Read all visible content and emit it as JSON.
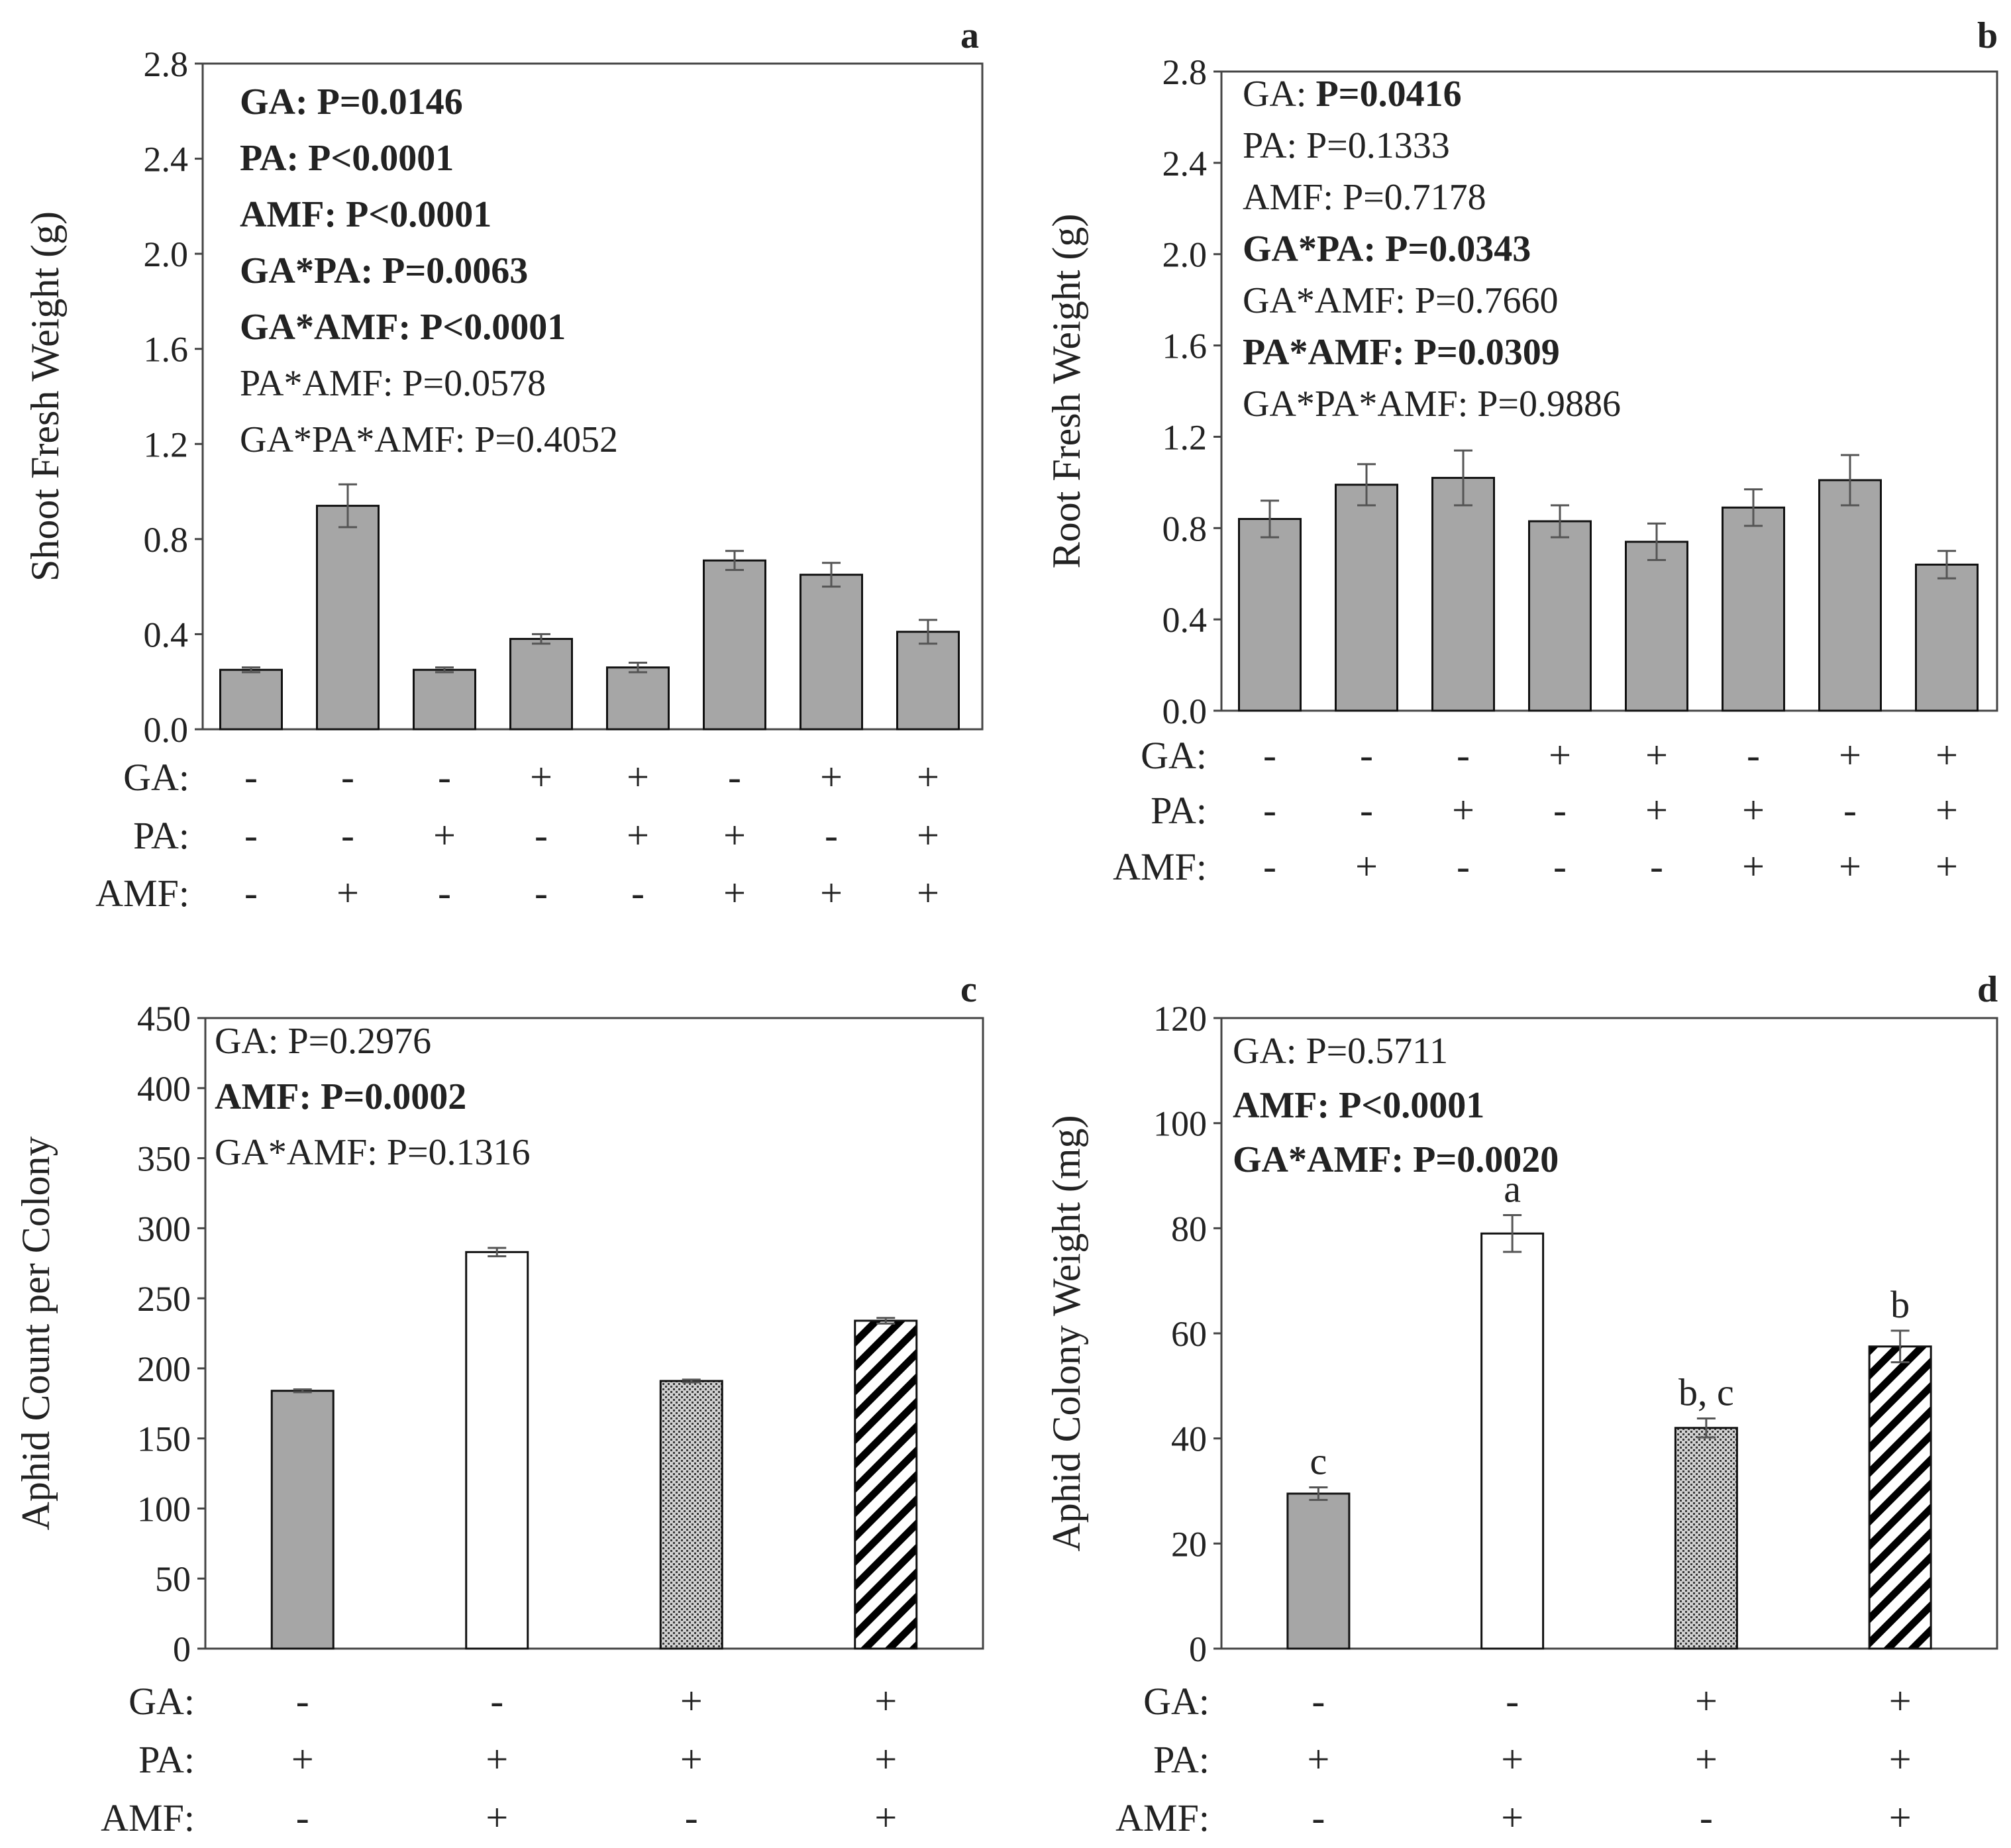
{
  "colors": {
    "gray_bar": "#a6a6a6",
    "white_bar": "#ffffff",
    "axis": "#444444",
    "text": "#222222"
  },
  "chart_data": [
    {
      "panel": "a",
      "type": "bar",
      "ylabel": "Shoot Fresh Weight (g)",
      "ylim": [
        0,
        2.8
      ],
      "yticks": [
        "0.0",
        "0.4",
        "0.8",
        "1.2",
        "1.6",
        "2.0",
        "2.4",
        "2.8"
      ],
      "values": [
        0.25,
        0.94,
        0.25,
        0.38,
        0.26,
        0.71,
        0.65,
        0.41
      ],
      "errors": [
        0.01,
        0.09,
        0.01,
        0.02,
        0.02,
        0.04,
        0.05,
        0.05
      ],
      "patterns": [
        "gray",
        "gray",
        "gray",
        "gray",
        "gray",
        "gray",
        "gray",
        "gray"
      ],
      "treatments": {
        "row_labels": [
          "GA:",
          "PA:",
          "AMF:"
        ],
        "GA": [
          "-",
          "-",
          "-",
          "+",
          "+",
          "-",
          "+",
          "+"
        ],
        "PA": [
          "-",
          "-",
          "+",
          "-",
          "+",
          "+",
          "-",
          "+"
        ],
        "AMF": [
          "-",
          "+",
          "-",
          "-",
          "-",
          "+",
          "+",
          "+"
        ]
      },
      "stats": [
        {
          "factor": "GA:",
          "value": "P=0.0146",
          "bold": true
        },
        {
          "factor": "PA:",
          "value": "P<0.0001",
          "bold": true
        },
        {
          "factor": "AMF:",
          "value": "P<0.0001",
          "bold": true
        },
        {
          "factor": "GA*PA:",
          "value": "P=0.0063",
          "bold": true
        },
        {
          "factor": "GA*AMF:",
          "value": "P<0.0001",
          "bold": true
        },
        {
          "factor": "PA*AMF:",
          "value": "P=0.0578",
          "bold": false
        },
        {
          "factor": "GA*PA*AMF:",
          "value": "P=0.4052",
          "bold": false
        }
      ],
      "letters": []
    },
    {
      "panel": "b",
      "type": "bar",
      "ylabel": "Root Fresh Weight (g)",
      "ylim": [
        0,
        2.8
      ],
      "yticks": [
        "0.0",
        "0.4",
        "0.8",
        "1.2",
        "1.6",
        "2.0",
        "2.4",
        "2.8"
      ],
      "values": [
        0.84,
        0.99,
        1.02,
        0.83,
        0.74,
        0.89,
        1.01,
        0.64
      ],
      "errors": [
        0.08,
        0.09,
        0.12,
        0.07,
        0.08,
        0.08,
        0.11,
        0.06
      ],
      "patterns": [
        "gray",
        "gray",
        "gray",
        "gray",
        "gray",
        "gray",
        "gray",
        "gray"
      ],
      "treatments": {
        "row_labels": [
          "GA:",
          "PA:",
          "AMF:"
        ],
        "GA": [
          "-",
          "-",
          "-",
          "+",
          "+",
          "-",
          "+",
          "+"
        ],
        "PA": [
          "-",
          "-",
          "+",
          "-",
          "+",
          "+",
          "-",
          "+"
        ],
        "AMF": [
          "-",
          "+",
          "-",
          "-",
          "-",
          "+",
          "+",
          "+"
        ]
      },
      "stats": [
        {
          "factor": "GA:",
          "value": "P=0.0416",
          "bold": false,
          "value_bold": true
        },
        {
          "factor": "PA:",
          "value": "P=0.1333",
          "bold": false
        },
        {
          "factor": "AMF:",
          "value": "P=0.7178",
          "bold": false
        },
        {
          "factor": "GA*PA:",
          "value": "P=0.0343",
          "bold": true
        },
        {
          "factor": "GA*AMF:",
          "value": "P=0.7660",
          "bold": false
        },
        {
          "factor": "PA*AMF:",
          "value": "P=0.0309",
          "bold": true
        },
        {
          "factor": "GA*PA*AMF:",
          "value": "P=0.9886",
          "bold": false
        }
      ],
      "letters": []
    },
    {
      "panel": "c",
      "type": "bar",
      "ylabel": "Aphid Count per Colony",
      "ylim": [
        0,
        450
      ],
      "yticks": [
        "0",
        "50",
        "100",
        "150",
        "200",
        "250",
        "300",
        "350",
        "400",
        "450"
      ],
      "values": [
        184,
        283,
        191,
        234
      ],
      "errors": [
        1,
        3,
        1,
        2
      ],
      "patterns": [
        "gray",
        "white",
        "dots",
        "hatch"
      ],
      "treatments": {
        "row_labels": [
          "GA:",
          "PA:",
          "AMF:"
        ],
        "GA": [
          "-",
          "-",
          "+",
          "+"
        ],
        "PA": [
          "+",
          "+",
          "+",
          "+"
        ],
        "AMF": [
          "-",
          "+",
          "-",
          "+"
        ]
      },
      "stats": [
        {
          "factor": "GA:",
          "value": "P=0.2976",
          "bold": false
        },
        {
          "factor": "AMF:",
          "value": "P=0.0002",
          "bold": true
        },
        {
          "factor": "GA*AMF:",
          "value": "P=0.1316",
          "bold": false
        }
      ],
      "letters": []
    },
    {
      "panel": "d",
      "type": "bar",
      "ylabel": "Aphid Colony Weight (mg)",
      "ylim": [
        0,
        120
      ],
      "yticks": [
        "0",
        "20",
        "40",
        "60",
        "80",
        "100",
        "120"
      ],
      "values": [
        29.5,
        79,
        42,
        57.5
      ],
      "errors": [
        1.2,
        3.5,
        1.8,
        3.0
      ],
      "patterns": [
        "gray",
        "white",
        "dots",
        "hatch"
      ],
      "treatments": {
        "row_labels": [
          "GA:",
          "PA:",
          "AMF:"
        ],
        "GA": [
          "-",
          "-",
          "+",
          "+"
        ],
        "PA": [
          "+",
          "+",
          "+",
          "+"
        ],
        "AMF": [
          "-",
          "+",
          "-",
          "+"
        ]
      },
      "stats": [
        {
          "factor": "GA:",
          "value": "P=0.5711",
          "bold": false
        },
        {
          "factor": "AMF:",
          "value": "P<0.0001",
          "bold": true
        },
        {
          "factor": "GA*AMF:",
          "value": "P=0.0020",
          "bold": true
        }
      ],
      "letters": [
        "c",
        "a",
        "b, c",
        "b"
      ]
    }
  ]
}
